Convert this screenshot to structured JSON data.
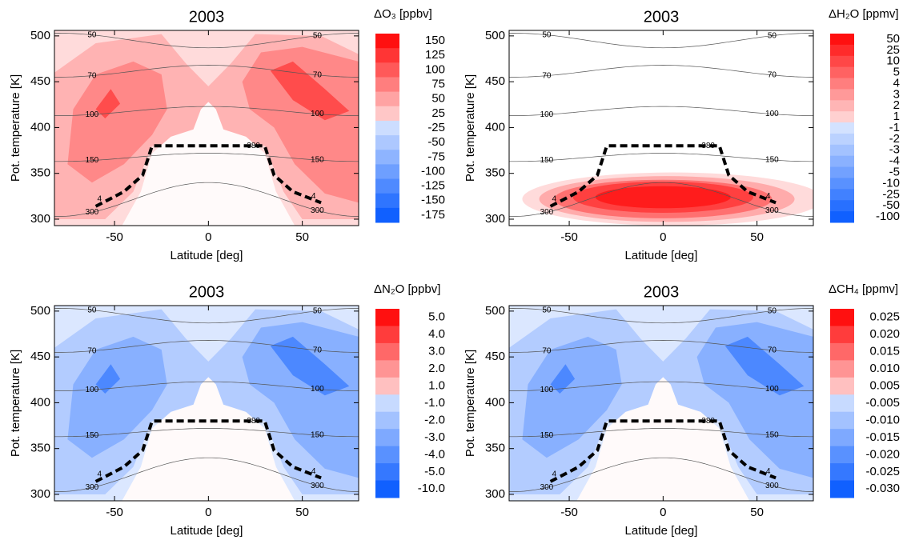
{
  "chart_data": [
    {
      "type": "contour",
      "title": "2003",
      "colorbar_label": "ΔO₃ [ppbv]",
      "xlabel": "Latitude [deg]",
      "ylabel": "Pot. temperature [K]",
      "xlim": [
        -82,
        80
      ],
      "ylim": [
        293,
        506
      ],
      "xticks": [
        -50,
        0,
        50
      ],
      "yticks": [
        300,
        350,
        400,
        450,
        500
      ],
      "colors": [
        "#ff1010",
        "#1060ff"
      ],
      "cbar_ticks": [
        150,
        125,
        100,
        75,
        50,
        25,
        -25,
        -50,
        -75,
        -100,
        -125,
        -150,
        -175
      ],
      "isentrope_labels": [
        50,
        70,
        100,
        150,
        300
      ],
      "tropopause_label": 380,
      "pv_label": 4
    },
    {
      "type": "contour",
      "title": "2003",
      "colorbar_label": "ΔH₂O [ppmv]",
      "xlabel": "Latitude [deg]",
      "ylabel": "Pot. temperature [K]",
      "xlim": [
        -82,
        80
      ],
      "ylim": [
        293,
        506
      ],
      "xticks": [
        -50,
        0,
        50
      ],
      "yticks": [
        300,
        350,
        400,
        450,
        500
      ],
      "colors": [
        "#ff1010",
        "#1060ff"
      ],
      "cbar_ticks": [
        50,
        25,
        10,
        5,
        4,
        3,
        2,
        1,
        -1,
        -2,
        -3,
        -4,
        -5,
        -10,
        -25,
        -50,
        -100
      ],
      "isentrope_labels": [
        50,
        70,
        100,
        150,
        300
      ],
      "tropopause_label": 380,
      "pv_label": 4
    },
    {
      "type": "contour",
      "title": "2003",
      "colorbar_label": "ΔN₂O [ppbv]",
      "xlabel": "Latitude [deg]",
      "ylabel": "Pot. temperature [K]",
      "xlim": [
        -82,
        80
      ],
      "ylim": [
        293,
        506
      ],
      "xticks": [
        -50,
        0,
        50
      ],
      "yticks": [
        300,
        350,
        400,
        450,
        500
      ],
      "colors": [
        "#ff1010",
        "#1060ff"
      ],
      "cbar_ticks": [
        {
          "value": 5,
          "label": "5.0"
        },
        {
          "value": 4,
          "label": "4.0"
        },
        {
          "value": 3,
          "label": "3.0"
        },
        {
          "value": 2,
          "label": "2.0"
        },
        {
          "value": 1,
          "label": "1.0"
        },
        {
          "value": -1,
          "label": "-1.0"
        },
        {
          "value": -2,
          "label": "-2.0"
        },
        {
          "value": -3,
          "label": "-3.0"
        },
        {
          "value": -4,
          "label": "-4.0"
        },
        {
          "value": -5,
          "label": "-5.0"
        },
        {
          "value": -10,
          "label": "-10.0"
        }
      ],
      "isentrope_labels": [
        50,
        70,
        100,
        150,
        300
      ],
      "tropopause_label": 380,
      "pv_label": 4
    },
    {
      "type": "contour",
      "title": "2003",
      "colorbar_label": "ΔCH₄ [ppmv]",
      "xlabel": "Latitude [deg]",
      "ylabel": "Pot. temperature [K]",
      "xlim": [
        -82,
        80
      ],
      "ylim": [
        293,
        506
      ],
      "xticks": [
        -50,
        0,
        50
      ],
      "yticks": [
        300,
        350,
        400,
        450,
        500
      ],
      "colors": [
        "#ff1010",
        "#1060ff"
      ],
      "cbar_ticks": [
        0.025,
        {
          "value": 0.02,
          "label": "0.020"
        },
        0.015,
        {
          "value": 0.01,
          "label": "0.010"
        },
        0.005,
        -0.005,
        {
          "value": -0.01,
          "label": "-0.010"
        },
        -0.015,
        {
          "value": -0.02,
          "label": "-0.020"
        },
        -0.025,
        {
          "value": -0.03,
          "label": "-0.030"
        }
      ],
      "isentrope_labels": [
        50,
        70,
        100,
        150,
        300
      ],
      "tropopause_label": 380,
      "pv_label": 4
    }
  ]
}
